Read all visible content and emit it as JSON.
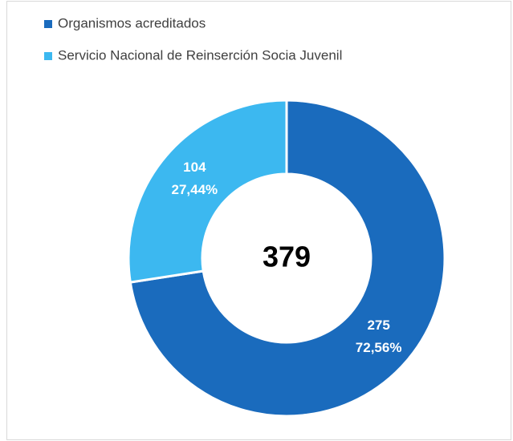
{
  "chart_data": {
    "type": "donut",
    "series": [
      {
        "name": "Organismos acreditados",
        "color": "#1a6bbd"
      },
      {
        "name": "Servicio Nacional de Reinserción Socia Juvenil",
        "color": "#3cb8f0"
      }
    ],
    "values": [
      275,
      104
    ],
    "percent_labels": [
      "72,56%",
      "27,44%"
    ],
    "center_label": "379",
    "legend": "top-left"
  }
}
